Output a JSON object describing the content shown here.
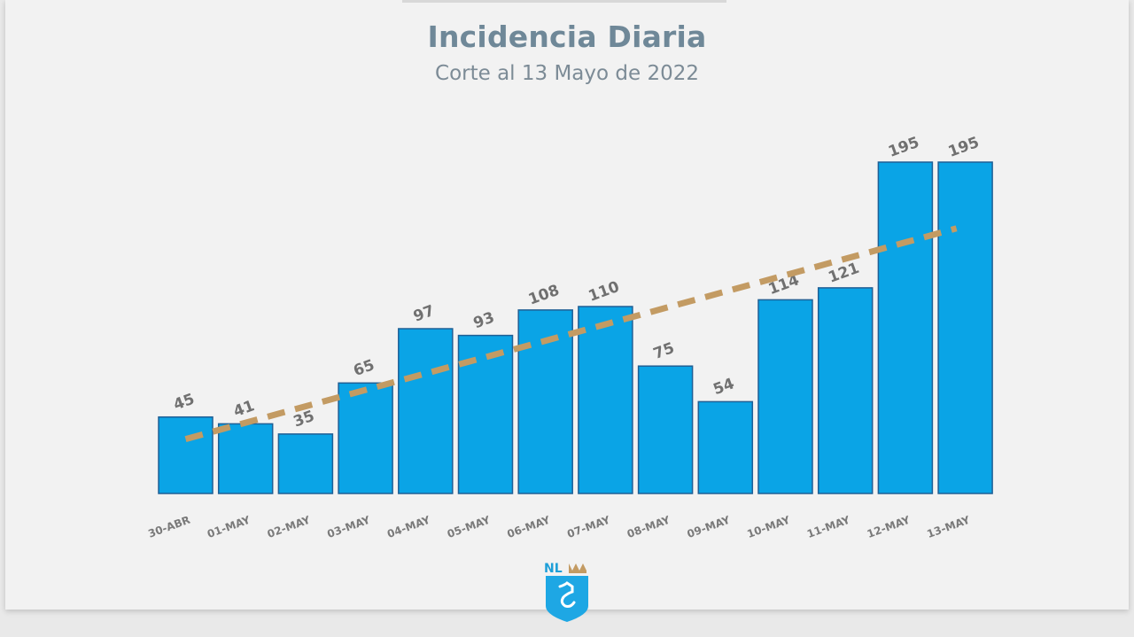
{
  "header": {
    "title": "Incidencia Diaria",
    "subtitle": "Corte al 13 Mayo de 2022"
  },
  "logo": {
    "text": "NL",
    "icon": "nl-crown-shield-logo"
  },
  "colors": {
    "bar": "#0aa4e6",
    "bar_border": "#1f5f95",
    "trend": "#c39b63",
    "title": "#6f8898"
  },
  "chart_data": {
    "type": "bar",
    "title": "Incidencia Diaria",
    "subtitle": "Corte al 13 Mayo de 2022",
    "categories": [
      "30-ABR",
      "01-MAY",
      "02-MAY",
      "03-MAY",
      "04-MAY",
      "05-MAY",
      "06-MAY",
      "07-MAY",
      "08-MAY",
      "09-MAY",
      "10-MAY",
      "11-MAY",
      "12-MAY",
      "13-MAY"
    ],
    "values": [
      45,
      41,
      35,
      65,
      97,
      93,
      108,
      110,
      75,
      54,
      114,
      121,
      195,
      195
    ],
    "trendline": {
      "style": "dashed",
      "start": 32,
      "end": 156
    },
    "xlabel": "",
    "ylabel": "",
    "ylim": [
      0,
      195
    ],
    "grid": false,
    "legend": "none",
    "data_labels": true
  }
}
